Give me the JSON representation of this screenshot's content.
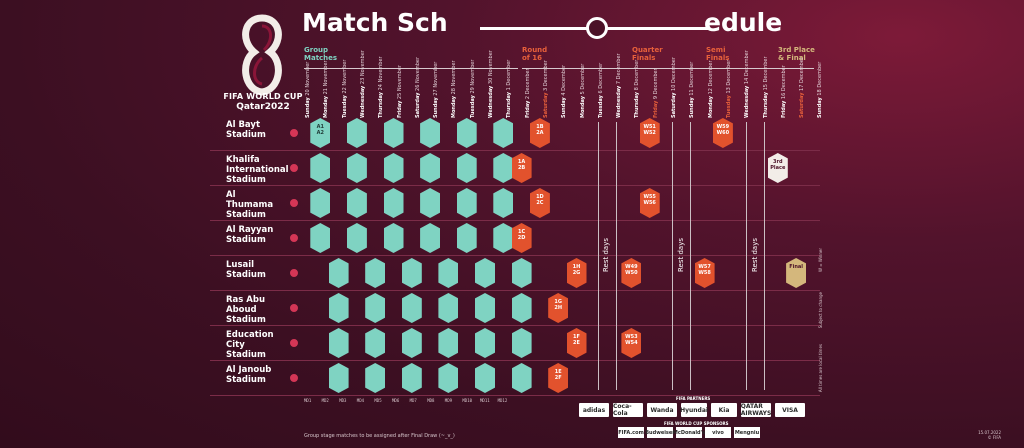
{
  "logo": {
    "line1": "FIFA WORLD CUP",
    "line2": "Qatar2022"
  },
  "title": {
    "part1": "Match Sch",
    "part2": "edule"
  },
  "stages": [
    {
      "label": "Group\nMatches",
      "color": "g"
    },
    {
      "label": "Round\nof 16",
      "color": "o"
    },
    {
      "label": "Quarter\nFinals",
      "color": "o"
    },
    {
      "label": "Semi\nFinals",
      "color": "o"
    },
    {
      "label": "3rd Place\n& Final",
      "color": "y"
    }
  ],
  "days": [
    {
      "d": "Sunday",
      "n": "20 November"
    },
    {
      "d": "Monday",
      "n": "21 November"
    },
    {
      "d": "Tuesday",
      "n": "22 November"
    },
    {
      "d": "Wednesday",
      "n": "23 November"
    },
    {
      "d": "Thursday",
      "n": "24 November"
    },
    {
      "d": "Friday",
      "n": "25 November"
    },
    {
      "d": "Saturday",
      "n": "26 November"
    },
    {
      "d": "Sunday",
      "n": "27 November"
    },
    {
      "d": "Monday",
      "n": "28 November"
    },
    {
      "d": "Tuesday",
      "n": "29 November"
    },
    {
      "d": "Wednesday",
      "n": "30 November"
    },
    {
      "d": "Thursday",
      "n": "1 December"
    },
    {
      "d": "Friday",
      "n": "2 December"
    },
    {
      "d": "Saturday",
      "n": "3 December"
    },
    {
      "d": "Sunday",
      "n": "4 December"
    },
    {
      "d": "Monday",
      "n": "5 December"
    },
    {
      "d": "Tuesday",
      "n": "6 December"
    },
    {
      "d": "Wednesday",
      "n": "7 December"
    },
    {
      "d": "Thursday",
      "n": "8 December"
    },
    {
      "d": "Friday",
      "n": "9 December"
    },
    {
      "d": "Saturday",
      "n": "10 December"
    },
    {
      "d": "Sunday",
      "n": "11 December"
    },
    {
      "d": "Monday",
      "n": "12 December"
    },
    {
      "d": "Tuesday",
      "n": "13 December"
    },
    {
      "d": "Wednesday",
      "n": "14 December"
    },
    {
      "d": "Thursday",
      "n": "15 December"
    },
    {
      "d": "Friday",
      "n": "16 December"
    },
    {
      "d": "Saturday",
      "n": "17 December"
    },
    {
      "d": "Sunday",
      "n": "18 December"
    }
  ],
  "stadiums": [
    "Al Bayt\nStadium",
    "Khalifa\nInternational\nStadium",
    "Al\nThumama\nStadium",
    "Al Rayyan\nStadium",
    "Lusail\nStadium",
    "Ras Abu\nAboud\nStadium",
    "Education\nCity\nStadium",
    "Al Janoub\nStadium"
  ],
  "rest": "Rest days",
  "matches": {
    "r16": [
      {
        "row": 0,
        "col": 13,
        "t": "1B\n2A"
      },
      {
        "row": 1,
        "col": 12,
        "t": "1A\n2B"
      },
      {
        "row": 2,
        "col": 13,
        "t": "1D\n2C"
      },
      {
        "row": 3,
        "col": 12,
        "t": "1C\n2D"
      },
      {
        "row": 4,
        "col": 15,
        "t": "1H\n2G"
      },
      {
        "row": 5,
        "col": 14,
        "t": "1G\n2H"
      },
      {
        "row": 6,
        "col": 15,
        "t": "1F\n2E"
      },
      {
        "row": 7,
        "col": 14,
        "t": "1E\n2F"
      }
    ],
    "qf": [
      {
        "row": 0,
        "col": 19,
        "t": "W51\nW52"
      },
      {
        "row": 2,
        "col": 19,
        "t": "W55\nW56"
      },
      {
        "row": 4,
        "col": 18,
        "t": "W49\nW50"
      },
      {
        "row": 6,
        "col": 18,
        "t": "W53\nW54"
      }
    ],
    "sf": [
      {
        "row": 0,
        "col": 23,
        "t": "W59\nW60"
      },
      {
        "row": 4,
        "col": 22,
        "t": "W57\nW58"
      }
    ],
    "third": {
      "row": 1,
      "col": 26,
      "t": "3rd\nPlace"
    },
    "final": {
      "row": 4,
      "col": 27,
      "t": "Final"
    },
    "opening": "A1\nA2"
  },
  "codes": [
    "MD1",
    "MD2",
    "MD3",
    "MD4",
    "MD5",
    "MD6",
    "MD7",
    "MD8",
    "MD9",
    "MD10",
    "MD11",
    "MD12"
  ],
  "footnote": "Group stage matches to be assigned after Final Draw (~_v_)",
  "sidenotes": [
    "W = Winner",
    "Subject to change",
    "All times are local times"
  ],
  "sponsors": {
    "partners_title": "FIFA PARTNERS",
    "partners": [
      "adidas",
      "Coca-Cola",
      "Wanda",
      "Hyundai",
      "Kia",
      "QATAR AIRWAYS",
      "VISA"
    ],
    "wc_title": "FIFA WORLD CUP SPONSORS",
    "wc": [
      "FIFA.com",
      "Budweiser",
      "McDonald's",
      "vivo",
      "Mengniu"
    ]
  },
  "date": "15.07.2022\n© FIFA"
}
